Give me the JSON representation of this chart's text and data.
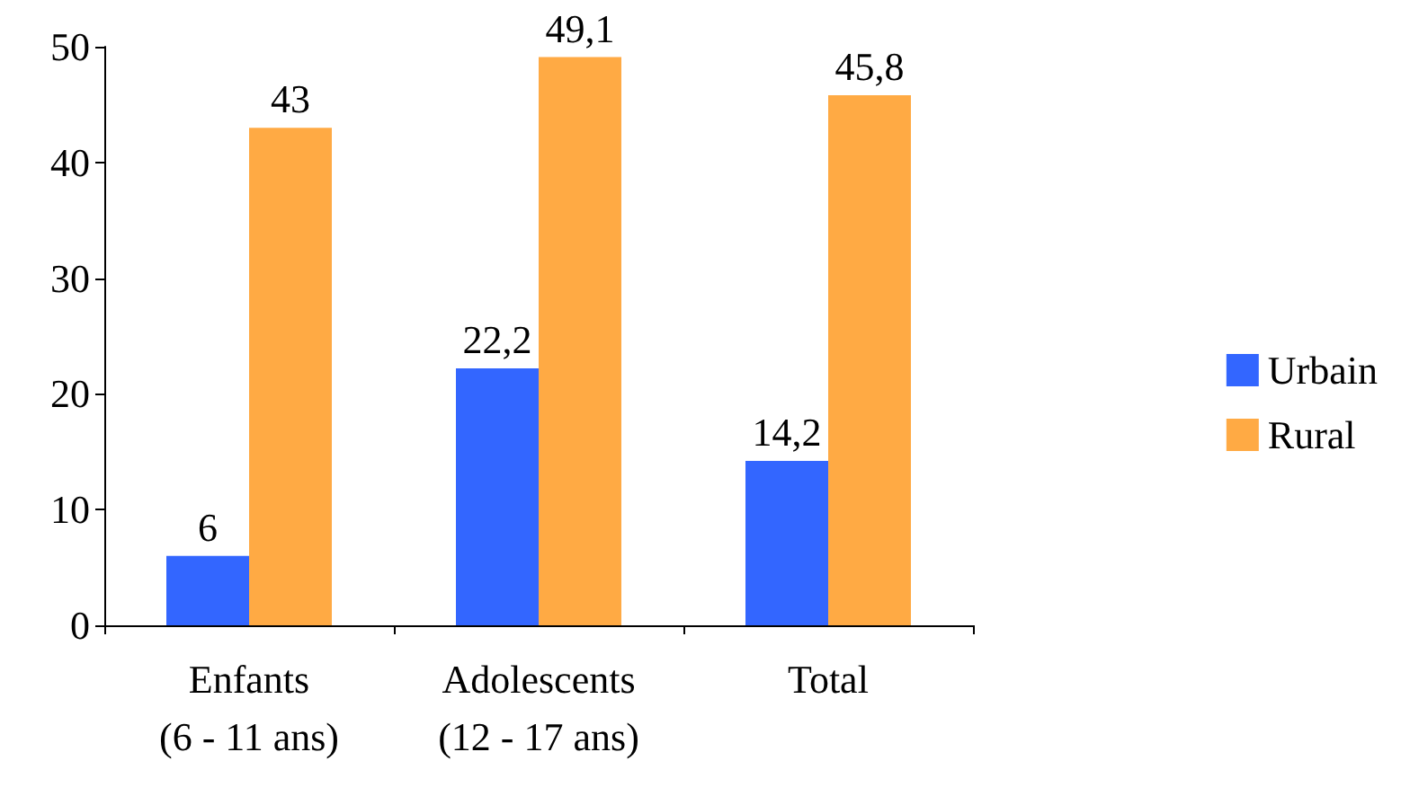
{
  "chart_data": {
    "type": "bar",
    "categories": [
      "Enfants\n(6 - 11 ans)",
      "Adolescents\n(12 - 17 ans)",
      "Total"
    ],
    "series": [
      {
        "name": "Urbain",
        "color": "#3366ff",
        "values": [
          6,
          22.2,
          14.2
        ],
        "value_labels": [
          "6",
          "22,2",
          "14,2"
        ]
      },
      {
        "name": "Rural",
        "color": "#ffaa44",
        "values": [
          43,
          49.1,
          45.8
        ],
        "value_labels": [
          "43",
          "49,1",
          "45,8"
        ]
      }
    ],
    "ylim": [
      0,
      50
    ],
    "yticks": [
      0,
      10,
      20,
      30,
      40,
      50
    ],
    "grid": false,
    "legend": "right"
  }
}
